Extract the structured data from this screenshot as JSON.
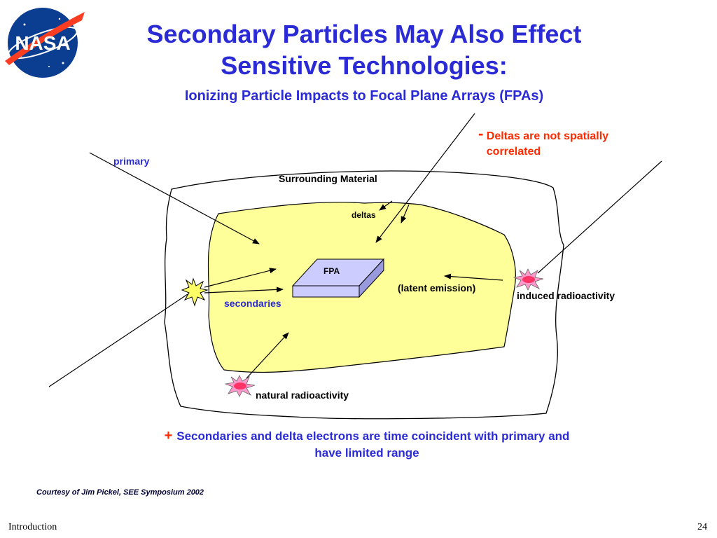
{
  "slide": {
    "title_line1": "Secondary Particles May Also Effect",
    "title_line2": "Sensitive Technologies:",
    "subtitle": "Ionizing Particle Impacts to Focal Plane Arrays (FPAs)",
    "logo_text": "NASA",
    "courtesy": "Courtesy of Jim Pickel, SEE Symposium 2002",
    "footer_left": "Introduction",
    "page_number": "24"
  },
  "diagram": {
    "note_dash": "-",
    "note_deltas": "Deltas are not spatially correlated",
    "labels": {
      "primary": "primary",
      "surrounding_material": "Surrounding Material",
      "deltas": "deltas",
      "fpa": "FPA",
      "latent_emission": "(latent emission)",
      "induced_radioactivity": "induced radioactivity",
      "secondaries": "secondaries",
      "natural_radioactivity": "natural radioactivity"
    },
    "bottom_plus": "+",
    "bottom_note": "Secondaries and delta electrons are time coincident with primary and have limited range"
  },
  "colors": {
    "title": "#2b2bd6",
    "accent_red": "#ff2a00",
    "inner_fill": "#ffff99",
    "fpa_top": "#ccccff",
    "fpa_side": "#9999dd",
    "burst_fill": "#ff3366",
    "burst_yellow": "#ffff66"
  },
  "icons": [
    "nasa-logo",
    "starburst-icon",
    "radioactivity-burst-icon"
  ]
}
